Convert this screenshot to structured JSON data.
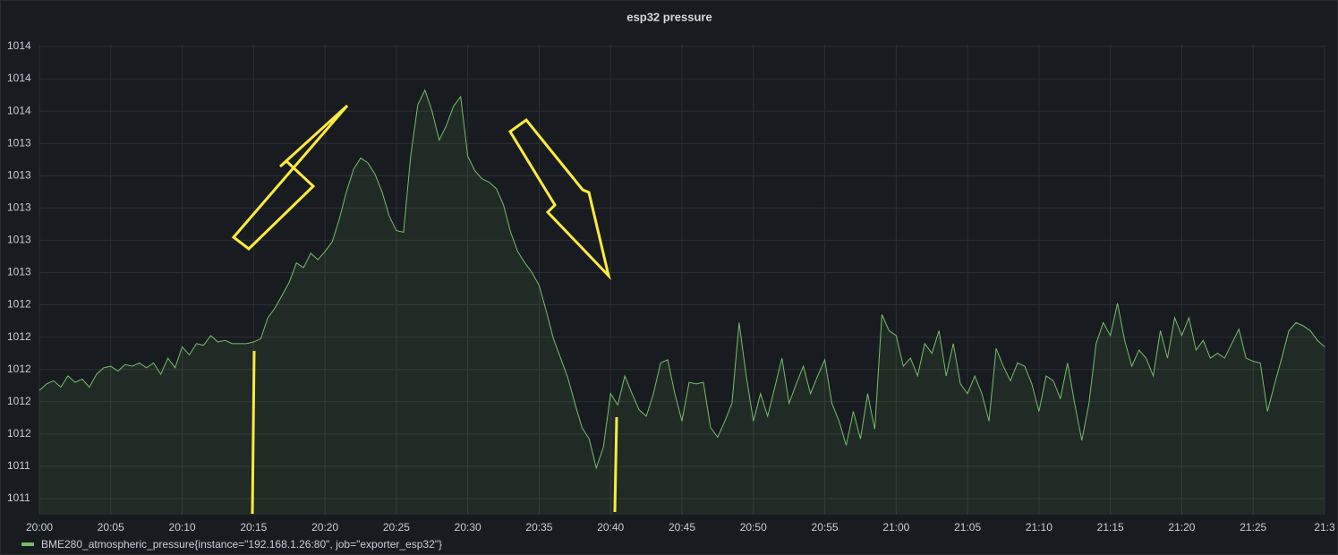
{
  "chart_data": {
    "type": "line",
    "title": "esp32 pressure",
    "x": [
      0,
      0.5,
      1,
      1.5,
      2,
      2.5,
      3,
      3.5,
      4,
      4.5,
      5,
      5.5,
      6,
      6.5,
      7,
      7.5,
      8,
      8.5,
      9,
      9.5,
      10,
      10.5,
      11,
      11.5,
      12,
      12.5,
      13,
      13.5,
      14,
      14.5,
      15,
      15.5,
      16,
      16.5,
      17,
      17.5,
      18,
      18.5,
      19,
      19.5,
      20,
      20.5,
      21,
      21.5,
      22,
      22.5,
      23,
      23.5,
      24,
      24.5,
      25,
      25.5,
      26,
      26.5,
      27,
      27.5,
      28,
      28.5,
      29,
      29.5,
      30,
      30.5,
      31,
      31.5,
      32,
      32.5,
      33,
      33.5,
      34,
      34.5,
      35,
      35.5,
      36,
      36.5,
      37,
      37.5,
      38,
      38.5,
      39,
      39.5,
      40,
      40.5,
      41,
      41.5,
      42,
      42.5,
      43,
      43.5,
      44,
      44.5,
      45,
      45.5,
      46,
      46.5,
      47,
      47.5,
      48,
      48.5,
      49,
      49.5,
      50,
      50.5,
      51,
      51.5,
      52,
      52.5,
      53,
      53.5,
      54,
      54.5,
      55,
      55.5,
      56,
      56.5,
      57,
      57.5,
      58,
      58.5,
      59,
      59.5,
      60,
      60.5,
      61,
      61.5,
      62,
      62.5,
      63,
      63.5,
      64,
      64.5,
      65,
      65.5,
      66,
      66.5,
      67,
      67.5,
      68,
      68.5,
      69,
      69.5,
      70,
      70.5,
      71,
      71.5,
      72,
      72.5,
      73,
      73.5,
      74,
      74.5,
      75,
      75.5,
      76,
      76.5,
      77,
      77.5,
      78,
      78.5,
      79,
      79.5,
      80,
      80.5,
      81,
      81.5,
      82,
      82.5,
      83,
      83.5,
      84,
      84.5,
      85,
      85.5,
      86,
      86.5,
      87,
      87.5,
      88,
      88.5,
      89,
      89.5,
      90
    ],
    "series": [
      {
        "name": "BME280_atmospheric_pressure{instance=\"192.168.1.26:80\", job=\"exporter_esp32\"}",
        "color": "#73bf69",
        "values": [
          1011.87,
          1011.91,
          1011.93,
          1011.89,
          1011.96,
          1011.92,
          1011.94,
          1011.89,
          1011.97,
          1012.01,
          1012.02,
          1011.99,
          1012.03,
          1012.02,
          1012.04,
          1012.01,
          1012.04,
          1011.97,
          1012.07,
          1012.01,
          1012.14,
          1012.09,
          1012.16,
          1012.15,
          1012.21,
          1012.17,
          1012.18,
          1012.16,
          1012.16,
          1012.16,
          1012.17,
          1012.19,
          1012.32,
          1012.38,
          1012.46,
          1012.54,
          1012.66,
          1012.63,
          1012.72,
          1012.68,
          1012.73,
          1012.79,
          1012.93,
          1013.1,
          1013.24,
          1013.31,
          1013.28,
          1013.21,
          1013.1,
          1012.95,
          1012.86,
          1012.85,
          1013.32,
          1013.64,
          1013.73,
          1013.6,
          1013.42,
          1013.51,
          1013.63,
          1013.69,
          1013.32,
          1013.23,
          1013.18,
          1013.16,
          1013.12,
          1013.02,
          1012.85,
          1012.73,
          1012.66,
          1012.6,
          1012.52,
          1012.36,
          1012.19,
          1012.07,
          1011.95,
          1011.79,
          1011.64,
          1011.57,
          1011.39,
          1011.52,
          1011.85,
          1011.78,
          1011.96,
          1011.85,
          1011.75,
          1011.71,
          1011.85,
          1012.04,
          1012.06,
          1011.85,
          1011.68,
          1011.92,
          1011.91,
          1011.92,
          1011.64,
          1011.58,
          1011.68,
          1011.79,
          1012.29,
          1011.96,
          1011.68,
          1011.85,
          1011.71,
          1011.89,
          1012.07,
          1011.79,
          1011.91,
          1012.02,
          1011.85,
          1011.96,
          1012.06,
          1011.79,
          1011.68,
          1011.53,
          1011.74,
          1011.57,
          1011.85,
          1011.63,
          1012.34,
          1012.24,
          1012.21,
          1012.02,
          1012.07,
          1011.96,
          1012.16,
          1012.1,
          1012.24,
          1011.96,
          1012.16,
          1011.91,
          1011.85,
          1011.96,
          1011.85,
          1011.68,
          1012.13,
          1012.02,
          1011.93,
          1012.04,
          1012.02,
          1011.91,
          1011.74,
          1011.96,
          1011.93,
          1011.82,
          1012.04,
          1011.79,
          1011.56,
          1011.79,
          1012.16,
          1012.29,
          1012.21,
          1012.41,
          1012.18,
          1012.02,
          1012.12,
          1012.07,
          1011.96,
          1012.24,
          1012.07,
          1012.32,
          1012.21,
          1012.32,
          1012.12,
          1012.18,
          1012.07,
          1012.1,
          1012.07,
          1012.16,
          1012.25,
          1012.07,
          1012.05,
          1012.04,
          1011.74,
          1011.91,
          1012.07,
          1012.24,
          1012.29,
          1012.27,
          1012.24,
          1012.18,
          1012.14
        ]
      }
    ],
    "xlim": [
      0,
      90
    ],
    "xticks": [
      {
        "value": 0,
        "label": "20:00"
      },
      {
        "value": 5,
        "label": "20:05"
      },
      {
        "value": 10,
        "label": "20:10"
      },
      {
        "value": 15,
        "label": "20:15"
      },
      {
        "value": 20,
        "label": "20:20"
      },
      {
        "value": 25,
        "label": "20:25"
      },
      {
        "value": 30,
        "label": "20:30"
      },
      {
        "value": 35,
        "label": "20:35"
      },
      {
        "value": 40,
        "label": "20:40"
      },
      {
        "value": 45,
        "label": "20:45"
      },
      {
        "value": 50,
        "label": "20:50"
      },
      {
        "value": 55,
        "label": "20:55"
      },
      {
        "value": 60,
        "label": "21:00"
      },
      {
        "value": 65,
        "label": "21:05"
      },
      {
        "value": 70,
        "label": "21:10"
      },
      {
        "value": 75,
        "label": "21:15"
      },
      {
        "value": 80,
        "label": "21:20"
      },
      {
        "value": 85,
        "label": "21:25"
      },
      {
        "value": 90,
        "label": "21:3"
      }
    ],
    "ylim": [
      1011.1,
      1014.0
    ],
    "yticks": [
      {
        "value": 1011.2,
        "label": "1011"
      },
      {
        "value": 1011.4,
        "label": "1011"
      },
      {
        "value": 1011.6,
        "label": "1012"
      },
      {
        "value": 1011.8,
        "label": "1012"
      },
      {
        "value": 1012.0,
        "label": "1012"
      },
      {
        "value": 1012.2,
        "label": "1012"
      },
      {
        "value": 1012.4,
        "label": "1012"
      },
      {
        "value": 1012.6,
        "label": "1013"
      },
      {
        "value": 1012.8,
        "label": "1013"
      },
      {
        "value": 1013.0,
        "label": "1013"
      },
      {
        "value": 1013.2,
        "label": "1013"
      },
      {
        "value": 1013.4,
        "label": "1013"
      },
      {
        "value": 1013.6,
        "label": "1014"
      },
      {
        "value": 1013.8,
        "label": "1014"
      },
      {
        "value": 1014.0,
        "label": "1014"
      }
    ],
    "grid": true,
    "legend": "bottom-left"
  }
}
